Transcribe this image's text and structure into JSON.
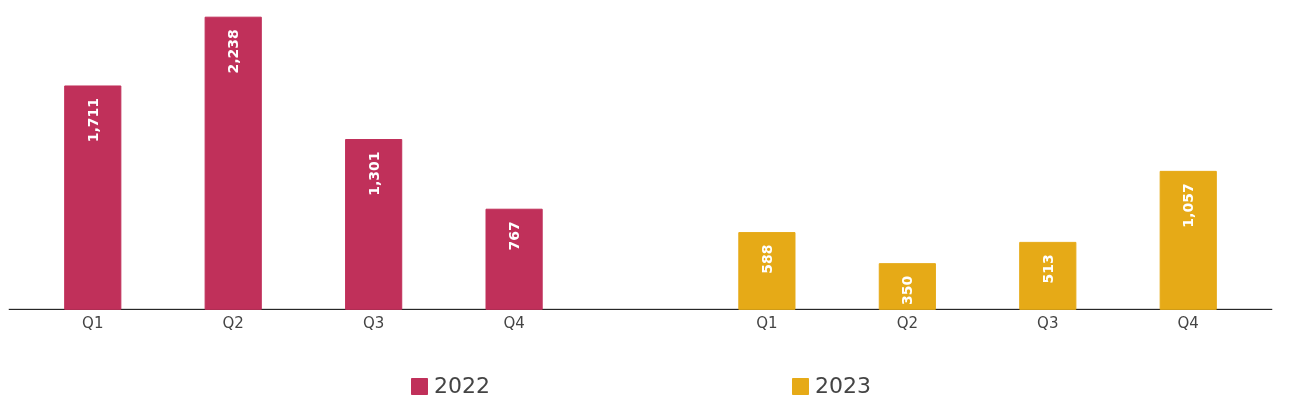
{
  "chart_data": {
    "type": "bar",
    "categories": [
      "Q1",
      "Q2",
      "Q3",
      "Q4",
      "Q1",
      "Q2",
      "Q3",
      "Q4"
    ],
    "series": [
      {
        "name": "2022",
        "color": "#c0305a",
        "values": [
          1711,
          2238,
          1301,
          767,
          null,
          null,
          null,
          null
        ],
        "value_labels": [
          "1,711",
          "2,238",
          "1,301",
          "767",
          null,
          null,
          null,
          null
        ]
      },
      {
        "name": "2023",
        "color": "#e6aa17",
        "values": [
          null,
          null,
          null,
          null,
          588,
          350,
          513,
          1057
        ],
        "value_labels": [
          null,
          null,
          null,
          null,
          "588",
          "350",
          "513",
          "1,057"
        ]
      }
    ],
    "legend": "bottom"
  }
}
